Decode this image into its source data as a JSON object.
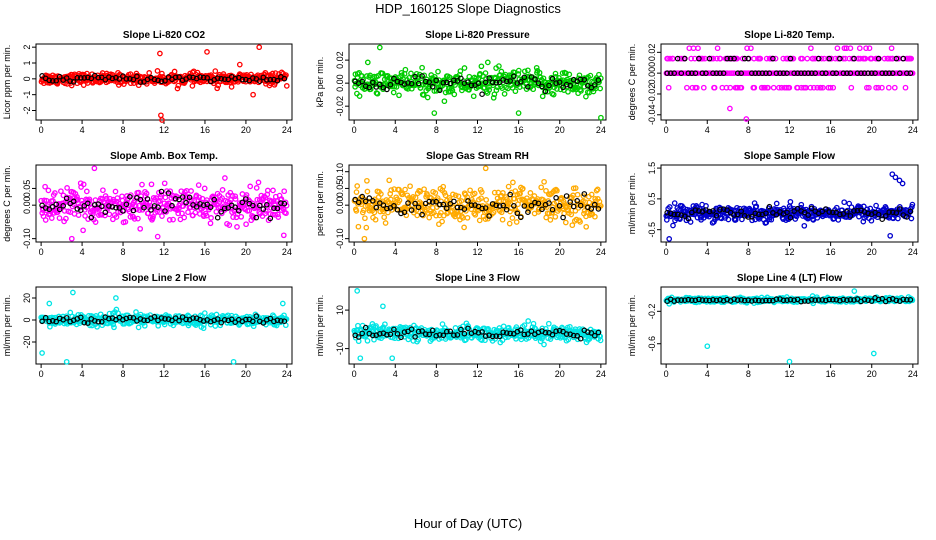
{
  "title": "HDP_160125  Slope Diagnostics",
  "x_axis_label": "Hour of Day (UTC)",
  "chart_data": [
    {
      "type": "scatter",
      "title": "Slope Li-820 CO2",
      "ylabel": "Licor ppm per min.",
      "color": "#ff0000",
      "xlim": [
        -0.5,
        24.5
      ],
      "ylim": [
        -2.6,
        2.2
      ],
      "xticks": [
        0,
        4,
        8,
        12,
        16,
        20,
        24
      ],
      "yticks": [
        -2,
        -1,
        0,
        1,
        2
      ],
      "ytick_labels": [
        "-2",
        "-1",
        "0",
        "1",
        "2"
      ],
      "base": 0.0,
      "spread": 0.35,
      "outliers": [
        [
          11.6,
          1.6
        ],
        [
          11.7,
          -2.3
        ],
        [
          11.8,
          -2.6
        ],
        [
          16.2,
          1.7
        ],
        [
          21.3,
          2.0
        ],
        [
          20.7,
          -1.0
        ],
        [
          19.4,
          0.9
        ],
        [
          17.2,
          -0.6
        ]
      ],
      "discrete": []
    },
    {
      "type": "scatter",
      "title": "Slope Li-820 Pressure",
      "ylabel": "kPa per min.",
      "color": "#00cc00",
      "xlim": [
        -0.5,
        24.5
      ],
      "ylim": [
        -0.032,
        0.034
      ],
      "xticks": [
        0,
        4,
        8,
        12,
        16,
        20,
        24
      ],
      "yticks": [
        -0.02,
        0,
        0.02
      ],
      "ytick_labels": [
        "-0.02",
        "0.00",
        "0.02"
      ],
      "base": 0.0,
      "spread": 0.011,
      "outliers": [
        [
          2.5,
          0.031
        ],
        [
          7.8,
          -0.026
        ],
        [
          16.0,
          -0.026
        ],
        [
          24.0,
          -0.03
        ],
        [
          13.0,
          0.018
        ]
      ],
      "discrete": []
    },
    {
      "type": "scatter",
      "title": "Slope Li-820 Temp.",
      "ylabel": "degrees C per min.",
      "color": "#ff00ff",
      "xlim": [
        -0.5,
        24.5
      ],
      "ylim": [
        -0.045,
        0.028
      ],
      "xticks": [
        0,
        4,
        8,
        12,
        16,
        20,
        24
      ],
      "yticks": [
        -0.04,
        -0.02,
        0,
        0.02
      ],
      "ytick_labels": [
        "-0.04",
        "-0.02",
        "0.000",
        "0.02"
      ],
      "base": 0.0,
      "spread": 0.0,
      "outliers": [
        [
          7.8,
          -0.044
        ],
        [
          6.2,
          -0.034
        ]
      ],
      "discrete": [
        -0.014,
        0,
        0.014,
        0.024
      ]
    },
    {
      "type": "scatter",
      "title": "Slope Amb. Box Temp.",
      "ylabel": "degrees C per min.",
      "color": "#ff00ff",
      "xlim": [
        -0.5,
        24.5
      ],
      "ylim": [
        -0.11,
        0.12
      ],
      "xticks": [
        0,
        4,
        8,
        12,
        16,
        20,
        24
      ],
      "yticks": [
        -0.1,
        0,
        0.05
      ],
      "ytick_labels": [
        "-0.10",
        "0.00",
        "0.05"
      ],
      "base": 0.0,
      "spread": 0.05,
      "outliers": [
        [
          5.2,
          0.11
        ],
        [
          3.0,
          -0.1
        ],
        [
          23.7,
          -0.09
        ]
      ],
      "discrete": []
    },
    {
      "type": "scatter",
      "title": "Slope Gas Stream RH",
      "ylabel": "percent per min.",
      "color": "#ffaa00",
      "xlim": [
        -0.5,
        24.5
      ],
      "ylim": [
        -0.11,
        0.12
      ],
      "xticks": [
        0,
        4,
        8,
        12,
        16,
        20,
        24
      ],
      "yticks": [
        -0.1,
        0,
        0.05,
        0.1
      ],
      "ytick_labels": [
        "-0.10",
        "0.00",
        "0.05",
        "0.10"
      ],
      "base": 0.0,
      "spread": 0.05,
      "outliers": [
        [
          12.8,
          0.11
        ],
        [
          1.0,
          -0.1
        ]
      ],
      "discrete": []
    },
    {
      "type": "scatter",
      "title": "Slope Sample Flow",
      "ylabel": "ml/min per min.",
      "color": "#0000cc",
      "xlim": [
        -0.5,
        24.5
      ],
      "ylim": [
        -0.9,
        1.6
      ],
      "xticks": [
        0,
        4,
        8,
        12,
        16,
        20,
        24
      ],
      "yticks": [
        -0.5,
        0.5,
        1.5
      ],
      "ytick_labels": [
        "-0.5",
        "0.5",
        "1.5"
      ],
      "base": 0.05,
      "spread": 0.25,
      "outliers": [
        [
          22.0,
          1.3
        ],
        [
          22.3,
          1.2
        ],
        [
          22.7,
          1.1
        ],
        [
          23.0,
          1.0
        ],
        [
          21.8,
          -0.7
        ],
        [
          0.3,
          -0.8
        ]
      ],
      "discrete": []
    },
    {
      "type": "scatter",
      "title": "Slope Line 2 Flow",
      "ylabel": "ml/min per min.",
      "color": "#00e5e5",
      "xlim": [
        -0.5,
        24.5
      ],
      "ylim": [
        -40,
        30
      ],
      "xticks": [
        0,
        4,
        8,
        12,
        16,
        20,
        24
      ],
      "yticks": [
        -20,
        0,
        20
      ],
      "ytick_labels": [
        "-20",
        "0",
        "20"
      ],
      "base": 0.0,
      "spread": 5,
      "outliers": [
        [
          3.1,
          25
        ],
        [
          0.1,
          -30
        ],
        [
          2.5,
          -38
        ],
        [
          18.8,
          -38
        ],
        [
          7.3,
          20
        ],
        [
          23.6,
          15
        ],
        [
          0.8,
          15
        ]
      ],
      "discrete": []
    },
    {
      "type": "scatter",
      "title": "Slope Line 3 Flow",
      "ylabel": "ml/min per min.",
      "color": "#00e5e5",
      "xlim": [
        -0.5,
        24.5
      ],
      "ylim": [
        -18,
        22
      ],
      "xticks": [
        0,
        4,
        8,
        12,
        16,
        20,
        24
      ],
      "yticks": [
        -10,
        10
      ],
      "ytick_labels": [
        "-10",
        "10"
      ],
      "base": -2.0,
      "spread": 4,
      "outliers": [
        [
          0.3,
          20
        ],
        [
          0.6,
          -15
        ],
        [
          3.7,
          -15
        ],
        [
          2.8,
          12
        ]
      ],
      "discrete": []
    },
    {
      "type": "scatter",
      "title": "Slope Line 4 (LT) Flow",
      "ylabel": "ml/min per min.",
      "color": "#00e5e5",
      "xlim": [
        -0.5,
        24.5
      ],
      "ylim": [
        -0.85,
        0.1
      ],
      "xticks": [
        0,
        4,
        8,
        12,
        16,
        20,
        24
      ],
      "yticks": [
        -0.6,
        -0.2
      ],
      "ytick_labels": [
        "-0.6",
        "-0.2"
      ],
      "base": -0.06,
      "spread": 0.03,
      "outliers": [
        [
          4.0,
          -0.63
        ],
        [
          12.0,
          -0.82
        ],
        [
          20.2,
          -0.72
        ],
        [
          18.3,
          0.05
        ]
      ],
      "discrete": []
    }
  ]
}
